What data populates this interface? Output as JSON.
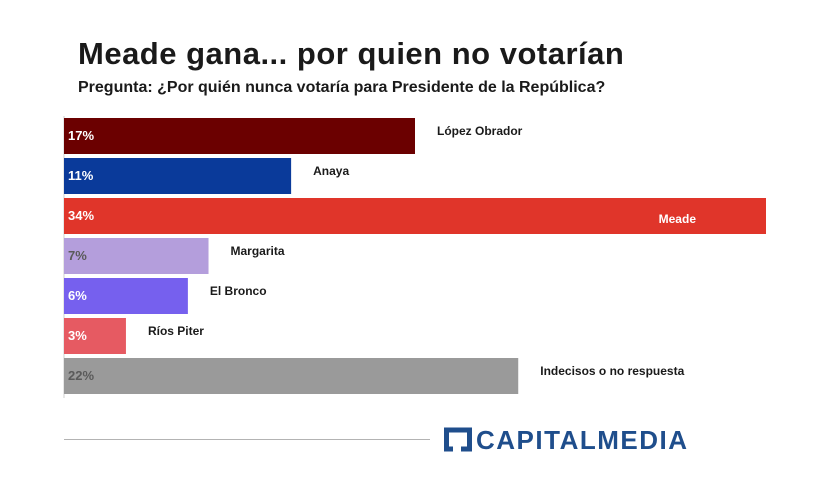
{
  "chart_data": {
    "type": "bar",
    "orientation": "horizontal",
    "title": "Meade gana... por quien no votarían",
    "subtitle": "Pregunta: ¿Por quién nunca votaría para Presidente de la República?",
    "categories": [
      "López Obrador",
      "Anaya",
      "Meade",
      "Margarita",
      "El Bronco",
      "Ríos Piter",
      "Indecisos o no respuesta"
    ],
    "values": [
      17,
      11,
      34,
      7,
      6,
      3,
      22
    ],
    "value_labels": [
      "17%",
      "11%",
      "34%",
      "7%",
      "6%",
      "3%",
      "22%"
    ],
    "colors": [
      "#6b0000",
      "#0a3a9a",
      "#e0352a",
      "#b49edc",
      "#7660ee",
      "#e65a62",
      "#9a9a9a"
    ],
    "value_label_colors": [
      "#ffffff",
      "#ffffff",
      "#ffffff",
      "#5a5a5a",
      "#ffffff",
      "#ffffff",
      "#5a5a5a"
    ],
    "xlim": [
      0,
      34
    ],
    "xlabel": "",
    "ylabel": "",
    "grid": false,
    "legend": "none"
  },
  "footer": {
    "brand": "CAPITALMEDIA",
    "brand_color": "#1f4e8c"
  }
}
